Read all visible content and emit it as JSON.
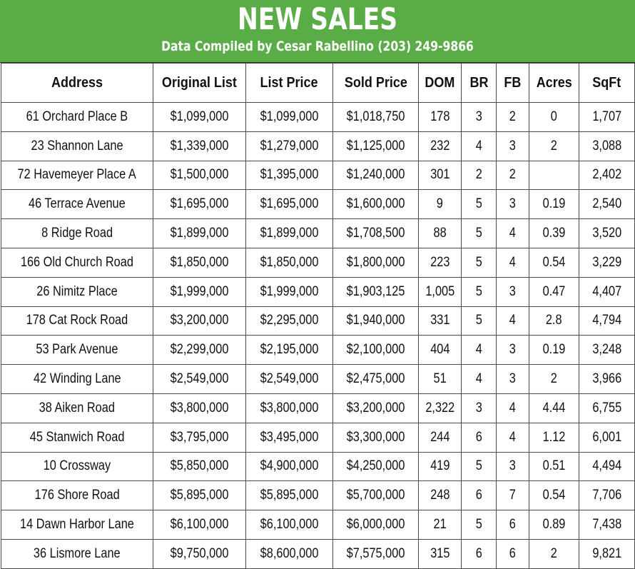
{
  "header": {
    "title": "NEW SALES",
    "subtitle": "Data Compiled by Cesar Rabellino (203) 249-9866"
  },
  "colors": {
    "banner": "#5aac47",
    "border": "#4a4a4a"
  },
  "table": {
    "columns": [
      "Address",
      "Original List",
      "List Price",
      "Sold Price",
      "DOM",
      "BR",
      "FB",
      "Acres",
      "SqFt"
    ],
    "rows": [
      [
        "61 Orchard Place  B",
        "$1,099,000",
        "$1,099,000",
        "$1,018,750",
        "178",
        "3",
        "2",
        "0",
        "1,707"
      ],
      [
        "23 Shannon Lane",
        "$1,339,000",
        "$1,279,000",
        "$1,125,000",
        "232",
        "4",
        "3",
        "2",
        "3,088"
      ],
      [
        "72 Havemeyer Place A",
        "$1,500,000",
        "$1,395,000",
        "$1,240,000",
        "301",
        "2",
        "2",
        "",
        "2,402"
      ],
      [
        "46 Terrace Avenue",
        "$1,695,000",
        "$1,695,000",
        "$1,600,000",
        "9",
        "5",
        "3",
        "0.19",
        "2,540"
      ],
      [
        "8 Ridge Road",
        "$1,899,000",
        "$1,899,000",
        "$1,708,500",
        "88",
        "5",
        "4",
        "0.39",
        "3,520"
      ],
      [
        "166 Old Church Road",
        "$1,850,000",
        "$1,850,000",
        "$1,800,000",
        "223",
        "5",
        "4",
        "0.54",
        "3,229"
      ],
      [
        "26 Nimitz Place",
        "$1,999,000",
        "$1,999,000",
        "$1,903,125",
        "1,005",
        "5",
        "3",
        "0.47",
        "4,407"
      ],
      [
        "178 Cat Rock Road",
        "$3,200,000",
        "$2,295,000",
        "$1,940,000",
        "331",
        "5",
        "4",
        "2.8",
        "4,794"
      ],
      [
        "53 Park Avenue",
        "$2,299,000",
        "$2,195,000",
        "$2,100,000",
        "404",
        "4",
        "3",
        "0.19",
        "3,248"
      ],
      [
        "42 Winding Lane",
        "$2,549,000",
        "$2,549,000",
        "$2,475,000",
        "51",
        "4",
        "3",
        "2",
        "3,966"
      ],
      [
        "38 Aiken Road",
        "$3,800,000",
        "$3,800,000",
        "$3,200,000",
        "2,322",
        "3",
        "4",
        "4.44",
        "6,755"
      ],
      [
        "45 Stanwich Road",
        "$3,795,000",
        "$3,495,000",
        "$3,300,000",
        "244",
        "6",
        "4",
        "1.12",
        "6,001"
      ],
      [
        "10 Crossway",
        "$5,850,000",
        "$4,900,000",
        "$4,250,000",
        "419",
        "5",
        "3",
        "0.51",
        "4,494"
      ],
      [
        "176 Shore Road",
        "$5,895,000",
        "$5,895,000",
        "$5,700,000",
        "248",
        "6",
        "7",
        "0.54",
        "7,706"
      ],
      [
        "14 Dawn Harbor Lane",
        "$6,100,000",
        "$6,100,000",
        "$6,000,000",
        "21",
        "5",
        "6",
        "0.89",
        "7,438"
      ],
      [
        "36 Lismore Lane",
        "$9,750,000",
        "$8,600,000",
        "$7,575,000",
        "315",
        "6",
        "6",
        "2",
        "9,821"
      ]
    ]
  }
}
